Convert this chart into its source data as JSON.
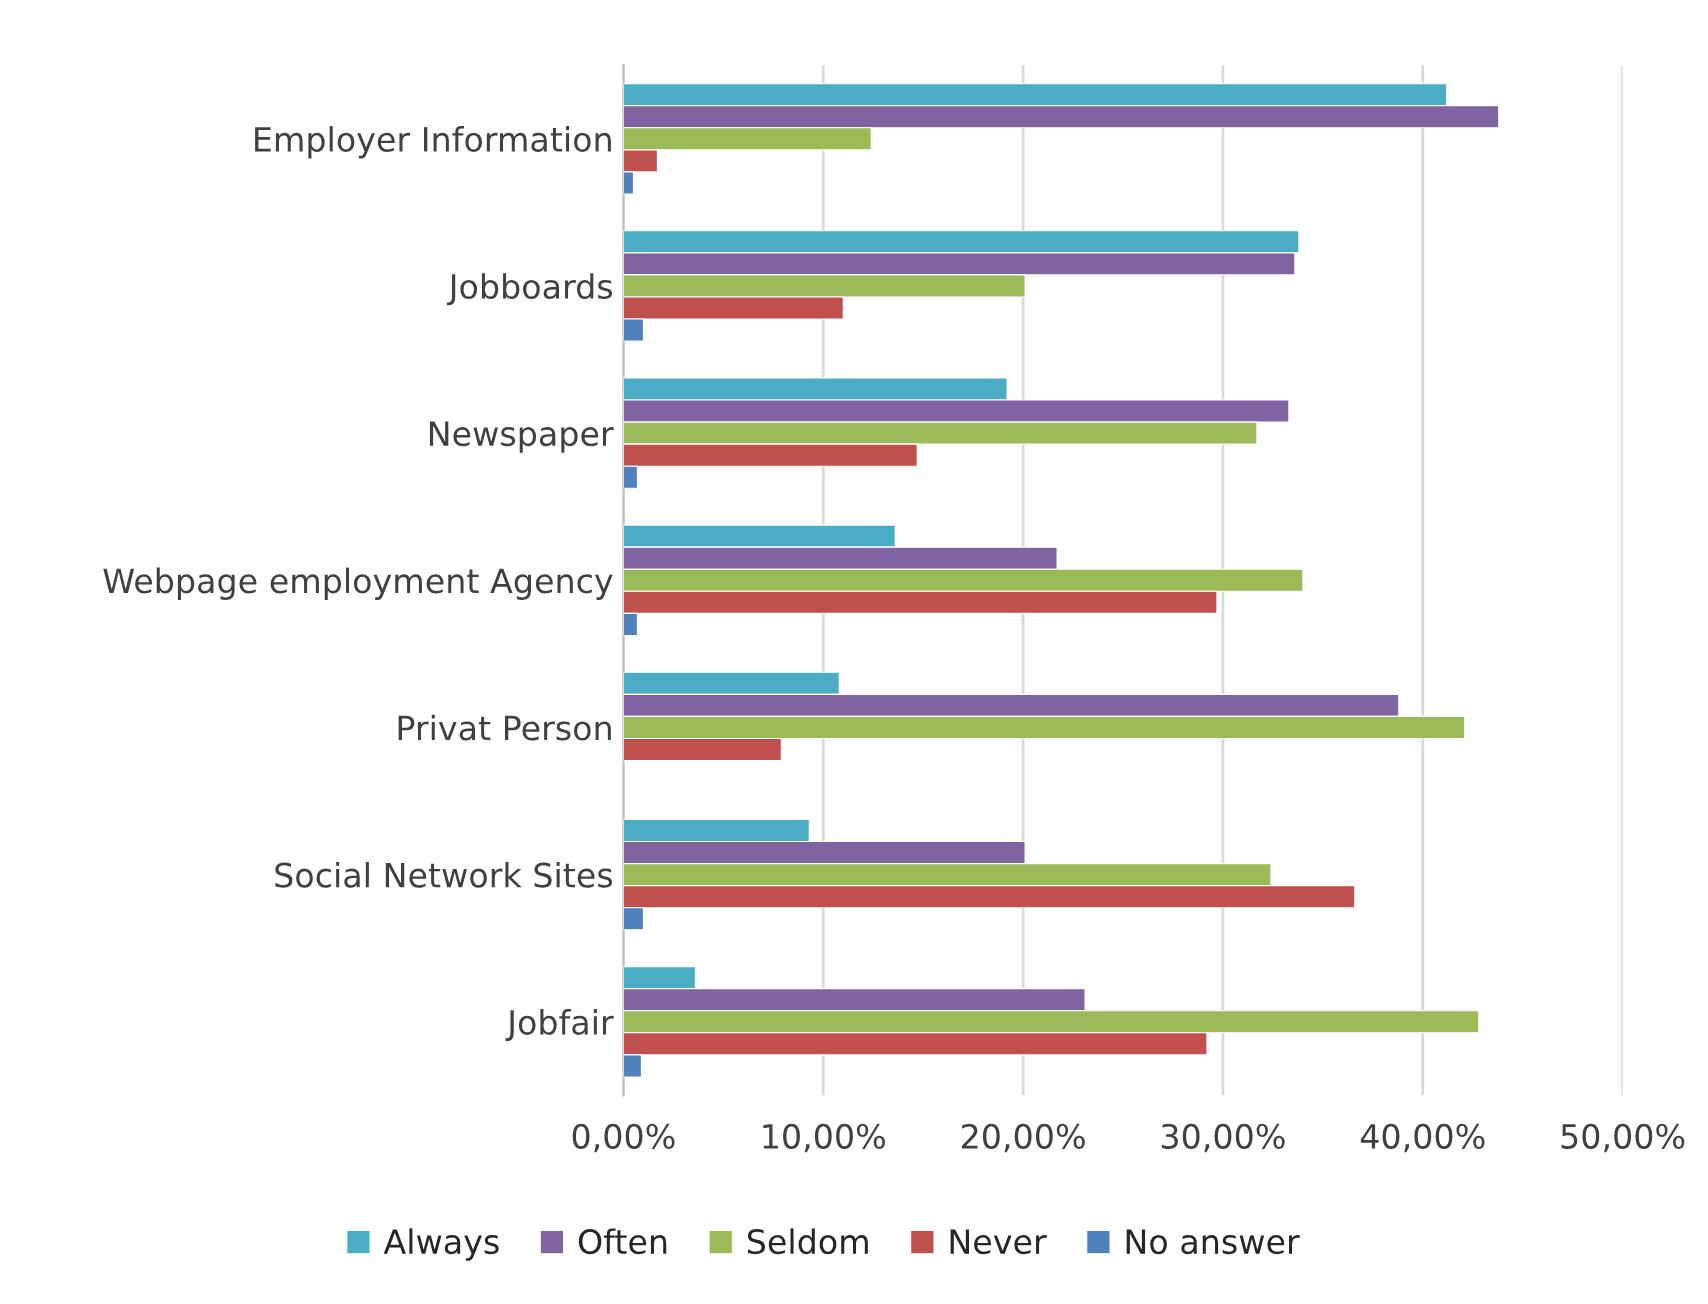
{
  "chart_data": {
    "type": "bar",
    "orientation": "horizontal",
    "categories": [
      "Employer Information",
      "Jobboards",
      "Newspaper",
      "Webpage employment Agency",
      "Privat Person",
      "Social Network Sites",
      "Jobfair"
    ],
    "series": [
      {
        "name": "Always",
        "color": "#4bacc6",
        "values": [
          41.2,
          33.8,
          19.2,
          13.6,
          10.8,
          9.3,
          3.6
        ]
      },
      {
        "name": "Often",
        "color": "#8064a2",
        "values": [
          43.8,
          33.6,
          33.3,
          21.7,
          38.8,
          20.1,
          23.1
        ]
      },
      {
        "name": "Seldom",
        "color": "#9bbb59",
        "values": [
          12.4,
          20.1,
          31.7,
          34.0,
          42.1,
          32.4,
          42.8
        ]
      },
      {
        "name": "Never",
        "color": "#c0504d",
        "values": [
          1.7,
          11.0,
          14.7,
          29.7,
          7.9,
          36.6,
          29.2
        ]
      },
      {
        "name": "No answer",
        "color": "#4f81bd",
        "values": [
          0.5,
          1.0,
          0.7,
          0.7,
          null,
          1.0,
          0.9
        ]
      }
    ],
    "xlim": [
      0,
      50
    ],
    "xticks": [
      {
        "value": 0,
        "label": "0,00%"
      },
      {
        "value": 10,
        "label": "10,00%"
      },
      {
        "value": 20,
        "label": "20,00%"
      },
      {
        "value": 30,
        "label": "30,00%"
      },
      {
        "value": 40,
        "label": "40,00%"
      },
      {
        "value": 50,
        "label": "50,00%"
      }
    ],
    "grid": "x",
    "legend": "bottom"
  }
}
